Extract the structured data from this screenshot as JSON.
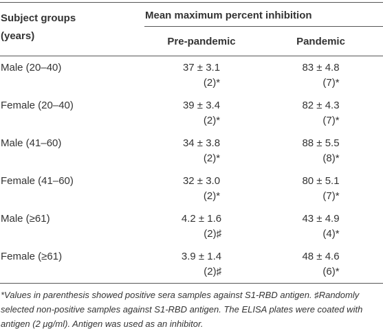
{
  "table": {
    "header": {
      "group": "Subject groups (years)",
      "measure": "Mean maximum percent inhibition",
      "columns": [
        "Pre-pandemic",
        "Pandemic"
      ]
    },
    "rows": [
      {
        "group": "Male (20–40)",
        "cells": [
          {
            "value": "37 ± 3.1",
            "note": "(2)*"
          },
          {
            "value": "83 ± 4.8",
            "note": "(7)*"
          }
        ]
      },
      {
        "group": "Female (20–40)",
        "cells": [
          {
            "value": "39 ± 3.4",
            "note": "(2)*"
          },
          {
            "value": "82 ± 4.3",
            "note": "(7)*"
          }
        ]
      },
      {
        "group": "Male (41–60)",
        "cells": [
          {
            "value": "34 ± 3.8",
            "note": "(2)*"
          },
          {
            "value": "88 ± 5.5",
            "note": "(8)*"
          }
        ]
      },
      {
        "group": "Female (41–60)",
        "cells": [
          {
            "value": "32 ± 3.0",
            "note": "(2)*"
          },
          {
            "value": "80 ± 5.1",
            "note": "(7)*"
          }
        ]
      },
      {
        "group": "Male (≥61)",
        "cells": [
          {
            "value": "4.2 ± 1.6",
            "note": "(2)♯"
          },
          {
            "value": "43 ± 4.9",
            "note": "(4)*"
          }
        ]
      },
      {
        "group": "Female (≥61)",
        "cells": [
          {
            "value": "3.9 ± 1.4",
            "note": "(2)♯"
          },
          {
            "value": "48 ± 4.6",
            "note": "(6)*"
          }
        ]
      }
    ]
  },
  "footnote": "*Values in parenthesis showed positive sera samples against S1-RBD antigen. ♯Randomly selected non-positive samples against S1-RBD antigen. The ELISA plates were coated with antigen (2 μg/ml). Antigen was used as an inhibitor."
}
